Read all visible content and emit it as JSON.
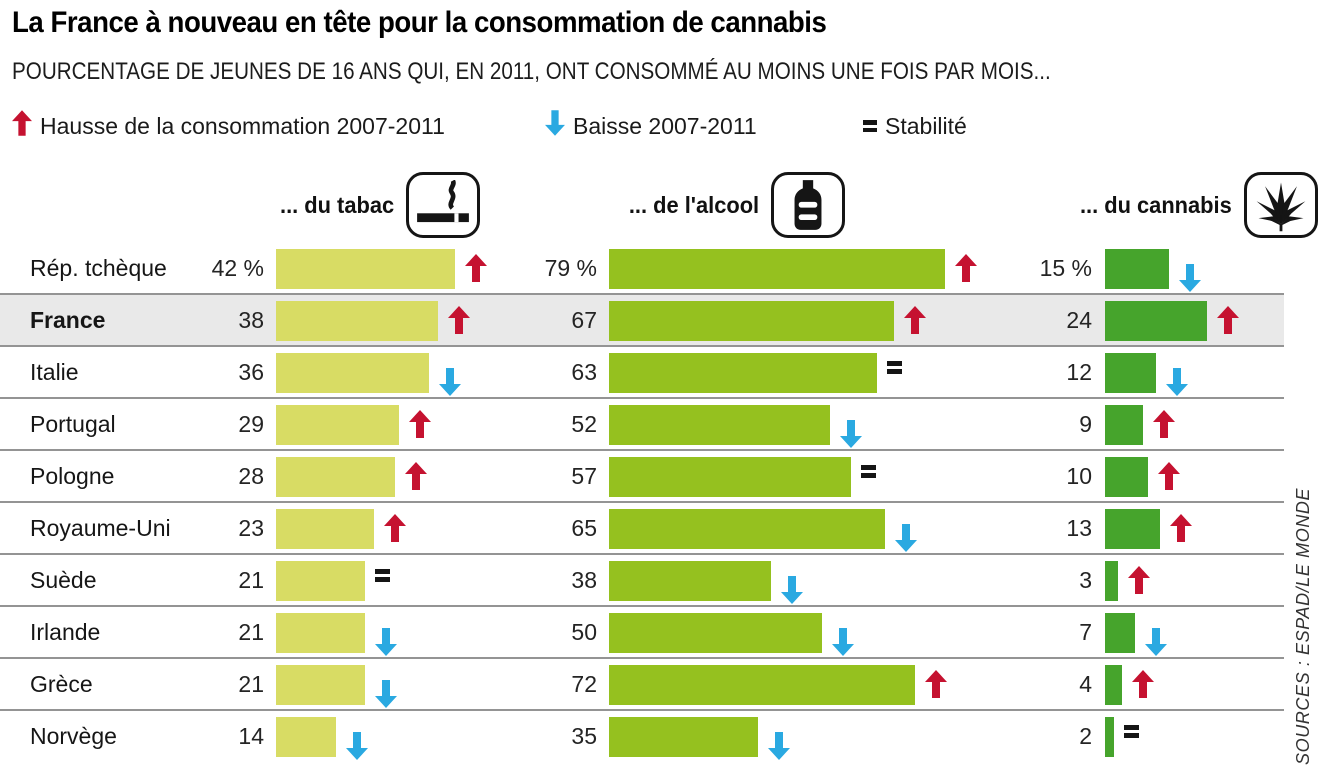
{
  "title": "La France à nouveau en tête pour la consommation de cannabis",
  "subtitle": "POURCENTAGE DE JEUNES DE 16 ANS QUI, EN 2011, ONT CONSOMMÉ AU MOINS UNE FOIS PAR MOIS...",
  "legend": {
    "up_label": "Hausse de la consommation 2007-2011",
    "down_label": "Baisse 2007-2011",
    "stable_label": "Stabilité"
  },
  "columns": [
    {
      "label": "... du tabac",
      "icon": "cigarette-icon"
    },
    {
      "label": "... de l'alcool",
      "icon": "bottle-icon"
    },
    {
      "label": "... du cannabis",
      "icon": "cannabis-leaf-icon"
    }
  ],
  "source": "SOURCES : ESPAD/LE MONDE",
  "colors": {
    "tabac_bar": "#d8dc64",
    "alcool_bar": "#95c11f",
    "cannabis_bar": "#46a42c",
    "up_arrow": "#c51230",
    "down_arrow": "#2aa9e1",
    "stable": "#151515",
    "highlight_row": "#e9e9e9"
  },
  "chart_data": {
    "type": "bar",
    "orientation": "horizontal",
    "title": "La France à nouveau en tête pour la consommation de cannabis",
    "subtitle": "POURCENTAGE DE JEUNES DE 16 ANS QUI, EN 2011, ONT CONSOMMÉ AU MOINS UNE FOIS PAR MOIS...",
    "unit": "%",
    "categories": [
      "Rép. tchèque",
      "France",
      "Italie",
      "Portugal",
      "Pologne",
      "Royaume-Uni",
      "Suède",
      "Irlande",
      "Grèce",
      "Norvège"
    ],
    "highlight_category": "France",
    "series": [
      {
        "name": "... du tabac",
        "values": [
          42,
          38,
          36,
          29,
          28,
          23,
          21,
          21,
          21,
          14
        ],
        "labels": [
          "42 %",
          "38",
          "36",
          "29",
          "28",
          "23",
          "21",
          "21",
          "21",
          "14"
        ],
        "trends": [
          "up",
          "up",
          "down",
          "up",
          "up",
          "up",
          "equal",
          "down",
          "down",
          "down"
        ]
      },
      {
        "name": "... de l'alcool",
        "values": [
          79,
          67,
          63,
          52,
          57,
          65,
          38,
          50,
          72,
          35
        ],
        "labels": [
          "79 %",
          "67",
          "63",
          "52",
          "57",
          "65",
          "38",
          "50",
          "72",
          "35"
        ],
        "trends": [
          "up",
          "up",
          "equal",
          "down",
          "equal",
          "down",
          "down",
          "down",
          "up",
          "down"
        ]
      },
      {
        "name": "... du cannabis",
        "values": [
          15,
          24,
          12,
          9,
          10,
          13,
          3,
          7,
          4,
          2
        ],
        "labels": [
          "15 %",
          "24",
          "12",
          "9",
          "10",
          "13",
          "3",
          "7",
          "4",
          "2"
        ],
        "trends": [
          "down",
          "up",
          "down",
          "up",
          "up",
          "up",
          "up",
          "down",
          "up",
          "equal"
        ]
      }
    ],
    "trend_meaning": {
      "up": "Hausse de la consommation 2007-2011",
      "down": "Baisse 2007-2011",
      "equal": "Stabilité"
    },
    "source": "SOURCES : ESPAD/LE MONDE"
  }
}
